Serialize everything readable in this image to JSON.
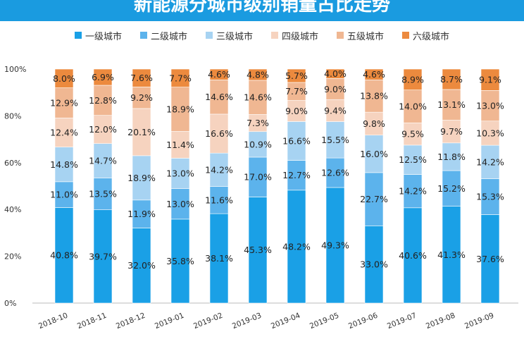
{
  "chart_data": {
    "type": "bar",
    "stacked": true,
    "title": "新能源分城市级别销量占比走势",
    "categories": [
      "2018-10",
      "2018-11",
      "2018-12",
      "2019-01",
      "2019-02",
      "2019-03",
      "2019-04",
      "2019-05",
      "2019-06",
      "2019-07",
      "2019-08",
      "2019-09"
    ],
    "series": [
      {
        "name": "一级城市",
        "color": "#1aa0e6",
        "values": [
          40.8,
          39.7,
          32.0,
          35.8,
          38.1,
          45.3,
          48.2,
          49.3,
          33.0,
          40.6,
          41.3,
          37.6
        ],
        "labels": [
          "40.8%",
          "39.7%",
          "32.0%",
          "35.8%",
          "38.1%",
          "45.3%",
          "48.2%",
          "49.3%",
          "33.0%",
          "40.6%",
          "41.3%",
          "37.6%"
        ]
      },
      {
        "name": "二级城市",
        "color": "#5cb3ec",
        "values": [
          11.0,
          13.5,
          11.9,
          13.0,
          11.6,
          17.0,
          12.7,
          12.6,
          22.7,
          14.2,
          15.2,
          15.3
        ],
        "labels": [
          "11.0%",
          "13.5%",
          "11.9%",
          "13.0%",
          "11.6%",
          "17.0%",
          "12.7%",
          "12.6%",
          "22.7%",
          "14.2%",
          "15.2%",
          "15.3%"
        ]
      },
      {
        "name": "三级城市",
        "color": "#a7d3f2",
        "values": [
          14.8,
          14.7,
          18.9,
          13.0,
          14.2,
          10.9,
          16.6,
          15.5,
          16.0,
          12.5,
          11.8,
          14.2
        ],
        "labels": [
          "14.8%",
          "14.7%",
          "18.9%",
          "13.0%",
          "14.2%",
          "10.9%",
          "16.6%",
          "15.5%",
          "16.0%",
          "12.5%",
          "11.8%",
          "14.2%"
        ]
      },
      {
        "name": "四级城市",
        "color": "#f6d3bf",
        "values": [
          12.4,
          12.0,
          20.1,
          11.4,
          16.6,
          7.3,
          9.0,
          9.4,
          9.8,
          9.5,
          9.7,
          10.3
        ],
        "labels": [
          "12.4%",
          "12.0%",
          "20.1%",
          "11.4%",
          "16.6%",
          "7.3%",
          "9.0%",
          "9.4%",
          "9.8%",
          "9.5%",
          "9.7%",
          "10.3%"
        ]
      },
      {
        "name": "五级城市",
        "color": "#f0b792",
        "values": [
          12.9,
          12.8,
          9.2,
          18.9,
          14.6,
          14.6,
          7.7,
          9.0,
          13.8,
          14.0,
          13.1,
          13.0
        ],
        "labels": [
          "12.9%",
          "12.8%",
          "9.2%",
          "18.9%",
          "14.6%",
          "14.6%",
          "7.7%",
          "9.0%",
          "13.8%",
          "14.0%",
          "13.1%",
          "13.0%"
        ]
      },
      {
        "name": "六级城市",
        "color": "#ec8a3e",
        "values": [
          8.0,
          6.9,
          7.6,
          7.7,
          4.6,
          4.8,
          5.7,
          4.0,
          4.6,
          8.9,
          8.7,
          9.1
        ],
        "labels": [
          "8.0%",
          "6.9%",
          "7.6%",
          "7.7%",
          "4.6%",
          "4.8%",
          "5.7%",
          "4.0%",
          "4.6%",
          "8.9%",
          "8.7%",
          "9.1%"
        ]
      }
    ],
    "yticks": [
      "0%",
      "20%",
      "40%",
      "60%",
      "80%",
      "100%"
    ],
    "ylim": [
      0,
      100
    ],
    "legend_position": "top",
    "grid": false
  }
}
